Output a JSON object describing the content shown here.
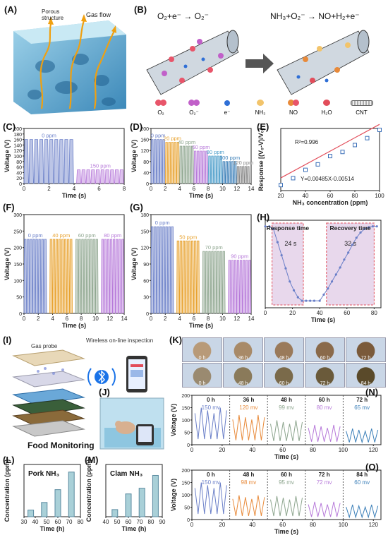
{
  "panel_labels": {
    "A": "(A)",
    "B": "(B)",
    "C": "(C)",
    "D": "(D)",
    "E": "(E)",
    "F": "(F)",
    "G": "(G)",
    "H": "(H)",
    "I": "(I)",
    "J": "(J)",
    "K": "(K)",
    "L": "(L)",
    "M": "(M)",
    "N": "(N)",
    "O": "(O)"
  },
  "panel_a": {
    "porous_label": "Porous structure",
    "gasflow_label": "Gas flow"
  },
  "panel_b": {
    "reaction_left": "O₂+e⁻ → O₂⁻",
    "reaction_right": "NH₃+O₂⁻ → NO+H₂+e⁻",
    "legend": [
      {
        "label": "O₂",
        "color": "#e8556a"
      },
      {
        "label": "O₂⁻",
        "color": "#c160c9"
      },
      {
        "label": "e⁻",
        "color": "#2f6fd6"
      },
      {
        "label": "NH₃",
        "color": "#f2c46b"
      },
      {
        "label": "NO",
        "color": "#e88a3a"
      },
      {
        "label": "H₂O",
        "color": "#e24d5a"
      },
      {
        "label": "CNT",
        "color": "#666666"
      }
    ]
  },
  "common": {
    "voltage_label": "Voltage (V)",
    "time_s_label": "Time (s)",
    "time_h_label": "Time (h)"
  },
  "chart_data": [
    {
      "id": "C",
      "type": "line",
      "xlabel": "Time (s)",
      "ylabel": "Voltage (V)",
      "xlim": [
        0,
        8
      ],
      "ylim": [
        0,
        200
      ],
      "xticks": [
        0,
        2,
        4,
        6,
        8
      ],
      "yticks": [
        0,
        20,
        40,
        60,
        80,
        100,
        120,
        140,
        160,
        180,
        200
      ],
      "series": [
        {
          "name": "0 ppm",
          "color": "#6a7fc8",
          "t_start": 0,
          "t_end": 4,
          "peak": 160,
          "cycles": 10
        },
        {
          "name": "150 ppm",
          "color": "#b678d9",
          "t_start": 4.2,
          "t_end": 8,
          "peak": 50,
          "cycles": 10
        }
      ]
    },
    {
      "id": "D",
      "type": "line",
      "xlabel": "Time (s)",
      "ylabel": "Voltage (V)",
      "xlim": [
        0,
        14
      ],
      "ylim": [
        0,
        200
      ],
      "xticks": [
        0,
        2,
        4,
        6,
        8,
        10,
        12,
        14
      ],
      "yticks": [
        0,
        40,
        80,
        120,
        160,
        200
      ],
      "series": [
        {
          "name": "0 ppm",
          "color": "#6a7fc8",
          "t_start": 0,
          "t_end": 2,
          "peak": 160,
          "cycles": 5
        },
        {
          "name": "20 ppm",
          "color": "#e8a22e",
          "t_start": 2,
          "t_end": 4,
          "peak": 150,
          "cycles": 5
        },
        {
          "name": "40 ppm",
          "color": "#8da58e",
          "t_start": 4,
          "t_end": 6,
          "peak": 136,
          "cycles": 5
        },
        {
          "name": "60 ppm",
          "color": "#b678d9",
          "t_start": 6,
          "t_end": 8,
          "peak": 118,
          "cycles": 5
        },
        {
          "name": "80 ppm",
          "color": "#4a9cc9",
          "t_start": 8,
          "t_end": 10,
          "peak": 100,
          "cycles": 5
        },
        {
          "name": "100 ppm",
          "color": "#3b7fb8",
          "t_start": 10,
          "t_end": 12,
          "peak": 80,
          "cycles": 5
        },
        {
          "name": "120 ppm",
          "color": "#888888",
          "t_start": 12,
          "t_end": 13.8,
          "peak": 62,
          "cycles": 5
        }
      ]
    },
    {
      "id": "E",
      "type": "scatter",
      "xlabel": "NH₃ concentration (ppm)",
      "ylabel": "Response [(V₀-V)/V₀]",
      "xlim": [
        20,
        100
      ],
      "ylim": [
        0,
        0.45
      ],
      "xticks": [
        20,
        40,
        60,
        80,
        100
      ],
      "x": [
        20,
        30,
        40,
        50,
        60,
        70,
        80,
        90,
        100
      ],
      "y": [
        0.04,
        0.09,
        0.15,
        0.19,
        0.25,
        0.28,
        0.33,
        0.38,
        0.44
      ],
      "fit": {
        "slope": 0.00485,
        "intercept": -0.00514
      },
      "r2_text": "R²=0.996",
      "eq_text": "Y=0.00485X-0.00514"
    },
    {
      "id": "F",
      "type": "line",
      "xlabel": "Time (s)",
      "ylabel": "Voltage (V)",
      "xlim": [
        0,
        14
      ],
      "ylim": [
        0,
        300
      ],
      "xticks": [
        0,
        2,
        4,
        6,
        8,
        10,
        12,
        14
      ],
      "yticks": [
        0,
        50,
        100,
        150,
        200,
        250,
        300
      ],
      "series": [
        {
          "name": "0 ppm",
          "color": "#6a7fc8",
          "t_start": 0,
          "t_end": 3.2,
          "peak": 225,
          "cycles": 8
        },
        {
          "name": "40 ppm",
          "color": "#e8a22e",
          "t_start": 3.6,
          "t_end": 6.8,
          "peak": 225,
          "cycles": 8
        },
        {
          "name": "60 ppm",
          "color": "#8da58e",
          "t_start": 7.2,
          "t_end": 10.4,
          "peak": 225,
          "cycles": 8
        },
        {
          "name": "80 ppm",
          "color": "#b678d9",
          "t_start": 10.8,
          "t_end": 14,
          "peak": 225,
          "cycles": 8
        }
      ]
    },
    {
      "id": "G",
      "type": "line",
      "xlabel": "Time (s)",
      "ylabel": "Voltage (V)",
      "xlim": [
        0,
        14
      ],
      "ylim": [
        0,
        180
      ],
      "xticks": [
        0,
        2,
        4,
        6,
        8,
        10,
        12,
        14
      ],
      "yticks": [
        0,
        30,
        60,
        90,
        120,
        150,
        180
      ],
      "series": [
        {
          "name": "0 ppm",
          "color": "#6a7fc8",
          "t_start": 0,
          "t_end": 3.2,
          "peak": 158,
          "cycles": 8
        },
        {
          "name": "50 ppm",
          "color": "#e8a22e",
          "t_start": 3.6,
          "t_end": 6.8,
          "peak": 132,
          "cycles": 8
        },
        {
          "name": "70 ppm",
          "color": "#8da58e",
          "t_start": 7.2,
          "t_end": 10.4,
          "peak": 113,
          "cycles": 8
        },
        {
          "name": "90 ppm",
          "color": "#b678d9",
          "t_start": 10.8,
          "t_end": 14,
          "peak": 97,
          "cycles": 8
        }
      ]
    },
    {
      "id": "H",
      "type": "line",
      "xlabel": "Time (s)",
      "xlim": [
        0,
        85
      ],
      "ylim": [
        0,
        1
      ],
      "xticks": [
        0,
        20,
        40,
        60,
        80
      ],
      "x": [
        0,
        3,
        6,
        9,
        12,
        15,
        18,
        21,
        24,
        27,
        30,
        33,
        36,
        40,
        43,
        46,
        49,
        52,
        55,
        58,
        61,
        64,
        67,
        70,
        73,
        76,
        79,
        82
      ],
      "y": [
        0.93,
        0.93,
        0.9,
        0.75,
        0.6,
        0.45,
        0.3,
        0.2,
        0.12,
        0.08,
        0.08,
        0.08,
        0.08,
        0.08,
        0.15,
        0.22,
        0.3,
        0.38,
        0.46,
        0.55,
        0.63,
        0.72,
        0.8,
        0.86,
        0.9,
        0.92,
        0.93,
        0.93
      ],
      "response_label": "Response time",
      "recovery_label": "Recovery time",
      "response_value": "24 s",
      "recovery_value": "32 s",
      "response_window": [
        5,
        28
      ],
      "recovery_window": [
        45,
        80
      ]
    },
    {
      "id": "L",
      "type": "bar",
      "title": "Pork NH₃",
      "xlabel": "Time (h)",
      "ylabel": "Concentration (ppm)",
      "categories": [
        36,
        48,
        60,
        72
      ],
      "x": [
        36,
        48,
        60,
        72
      ],
      "values": [
        14,
        30,
        57,
        94
      ],
      "xlim": [
        30,
        80
      ],
      "ylim": [
        0,
        110
      ],
      "xticks": [
        30,
        40,
        50,
        60,
        70,
        80
      ]
    },
    {
      "id": "M",
      "type": "bar",
      "title": "Clam NH₃",
      "xlabel": "Time (h)",
      "ylabel": "Concentration (ppm)",
      "categories": [
        48,
        60,
        72,
        84
      ],
      "x": [
        48,
        60,
        72,
        84
      ],
      "values": [
        15,
        48,
        60,
        87
      ],
      "xlim": [
        40,
        90
      ],
      "ylim": [
        0,
        110
      ],
      "xticks": [
        40,
        50,
        60,
        70,
        80,
        90
      ]
    },
    {
      "id": "N",
      "type": "line",
      "xlabel": "Time (s)",
      "ylabel": "Voltage (V)",
      "xlim": [
        0,
        125
      ],
      "ylim": [
        0,
        200
      ],
      "xticks": [
        0,
        20,
        40,
        60,
        80,
        100,
        120
      ],
      "yticks": [
        0,
        50,
        100,
        150,
        200
      ],
      "segments": [
        {
          "label": "0 h",
          "value_label": "150 mv",
          "color": "#6a7fc8",
          "peak": 150
        },
        {
          "label": "36 h",
          "value_label": "120 mv",
          "color": "#e88a3a",
          "peak": 120
        },
        {
          "label": "48 h",
          "value_label": "99 mv",
          "color": "#8da58e",
          "peak": 99
        },
        {
          "label": "60 h",
          "value_label": "80 mv",
          "color": "#b678d9",
          "peak": 80
        },
        {
          "label": "72 h",
          "value_label": "65 mv",
          "color": "#3b7fb8",
          "peak": 65
        }
      ]
    },
    {
      "id": "O",
      "type": "line",
      "xlabel": "Time (s)",
      "ylabel": "Voltage (V)",
      "xlim": [
        0,
        125
      ],
      "ylim": [
        0,
        200
      ],
      "xticks": [
        0,
        20,
        40,
        60,
        80,
        100,
        120
      ],
      "yticks": [
        0,
        50,
        100,
        150,
        200
      ],
      "segments": [
        {
          "label": "0 h",
          "value_label": "150 mv",
          "color": "#6a7fc8",
          "peak": 150
        },
        {
          "label": "48 h",
          "value_label": "98 mv",
          "color": "#e88a3a",
          "peak": 98
        },
        {
          "label": "60 h",
          "value_label": "95 mv",
          "color": "#8da58e",
          "peak": 95
        },
        {
          "label": "72 h",
          "value_label": "72 mv",
          "color": "#b678d9",
          "peak": 72
        },
        {
          "label": "84 h",
          "value_label": "60 mv",
          "color": "#3b7fb8",
          "peak": 60
        }
      ]
    }
  ],
  "panel_i": {
    "gas_probe_label": "Gas probe",
    "wireless_label": "Wireless on-line inspection",
    "food_label": "Food Monitoring"
  },
  "panel_k": {
    "row1_labels": [
      "0 h",
      "36 h",
      "48 h",
      "60 h",
      "72 h"
    ],
    "row2_labels": [
      "0 h",
      "48 h",
      "60 h",
      "72 h",
      "84 h"
    ]
  }
}
